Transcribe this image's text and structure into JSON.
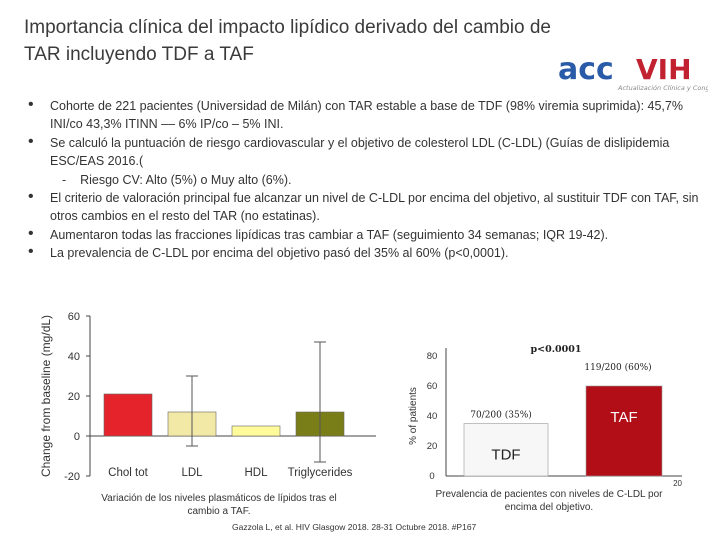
{
  "title_line1": "Importancia clínica del impacto lipídico derivado del cambio de",
  "title_line2": "TAR incluyendo TDF a TAF",
  "logo": {
    "text_acc": "acc",
    "text_vih": "VIH",
    "tagline": "Actualización Clínica y Congresos"
  },
  "bullets": [
    "Cohorte de 221 pacientes (Universidad de Milán) con TAR estable a base de TDF (98% viremia suprimida): 45,7% INI/co 43,3% ITINN –– 6% IP/co – 5% INI.",
    "Se calculó la puntuación de riesgo cardiovascular y el objetivo de colesterol LDL (C-LDL) (Guías de dislipidemia ESC/EAS 2016.(",
    "El criterio de valoración principal fue alcanzar un nivel de C-LDL por encima del objetivo, al sustituir TDF con TAF, sin otros cambios en el resto del TAR (no estatinas).",
    "Aumentaron todas las fracciones lipídicas tras cambiar a TAF (seguimiento 34 semanas; IQR 19-42).",
    "La prevalencia de C-LDL por encima del objetivo pasó del 35% al 60% (p<0,0001)."
  ],
  "sub_bullet_dash": "-",
  "sub_bullet": "Riesgo CV: Alto (5%) o Muy alto (6%).",
  "chart_data": [
    {
      "type": "bar",
      "ylabel": "Change from baseline (mg/dL)",
      "categories": [
        "Chol tot",
        "LDL",
        "HDL",
        "Triglycerides"
      ],
      "values": [
        21,
        12,
        5,
        12
      ],
      "error_low": [
        0,
        -5,
        0,
        -13
      ],
      "error_high": [
        0,
        30,
        0,
        47
      ],
      "colors": [
        "#e4232a",
        "#f2e9a6",
        "#fffa9a",
        "#7a7e19"
      ],
      "ylim": [
        -20,
        60
      ],
      "yticks": [
        "60",
        "40",
        "20",
        "0",
        "-20"
      ],
      "caption": "Variación de los niveles plasmáticos de lípidos tras el cambio a TAF."
    },
    {
      "type": "bar",
      "ylabel": "% of patients",
      "categories": [
        "TDF",
        "TAF"
      ],
      "values": [
        35,
        60
      ],
      "colors": [
        "#f7f7f7",
        "#b10e17"
      ],
      "ylim": [
        0,
        80
      ],
      "yticks": [
        "80",
        "60",
        "40",
        "20",
        "0"
      ],
      "x_corner": "20",
      "annotation_tdf": "70/200 (35%)",
      "annotation_taf": "119/200 (60%)",
      "pvalue": "p<0.0001",
      "caption": "Prevalencia de pacientes con niveles de C-LDL por encima del objetivo."
    }
  ],
  "source": "Gazzola L, et al. HIV Glasgow 2018. 28-31 Octubre 2018. #P167"
}
